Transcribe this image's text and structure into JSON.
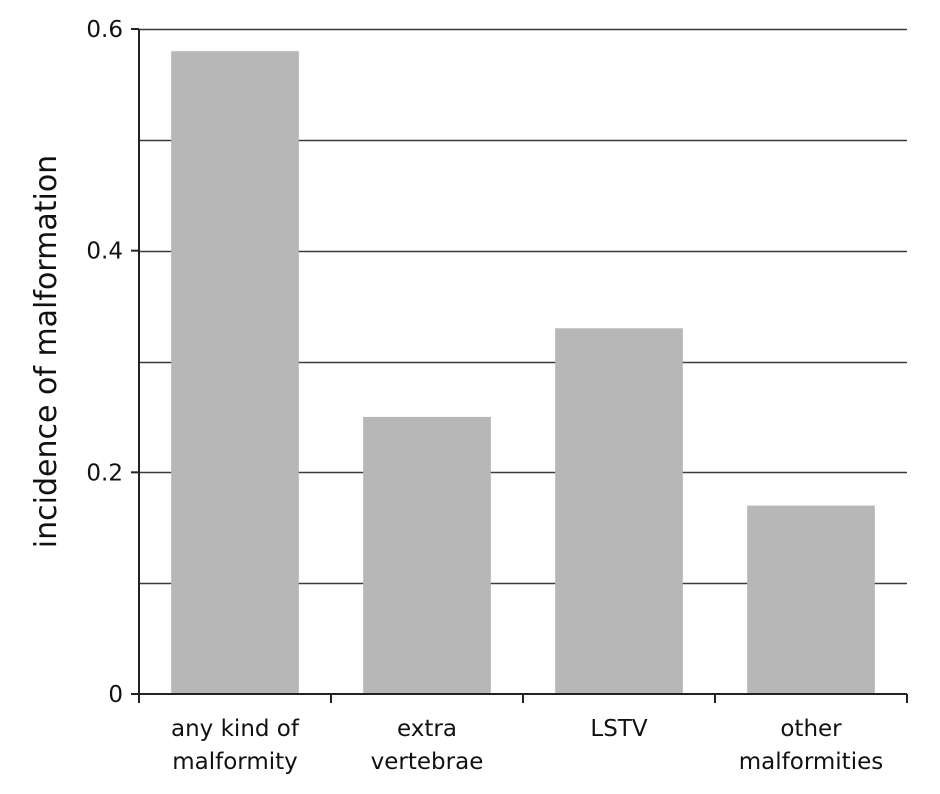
{
  "chart_data": {
    "type": "bar",
    "title": "",
    "xlabel": "",
    "ylabel": "incidence of malformation",
    "categories": [
      [
        "any kind of",
        "malformity"
      ],
      [
        "extra",
        "vertebrae"
      ],
      [
        "LSTV"
      ],
      [
        "other",
        "malformities"
      ]
    ],
    "values": [
      0.58,
      0.25,
      0.33,
      0.17
    ],
    "ylim": [
      0,
      0.6
    ],
    "yticks": [
      0,
      0.2,
      0.4,
      0.6
    ],
    "ytick_labels": [
      "0",
      "0.2",
      "0.4",
      "0.6"
    ],
    "gridlines": [
      0.1,
      0.2,
      0.3,
      0.4,
      0.5,
      0.6
    ],
    "grid": true,
    "legend": "none",
    "bar_color": "#b7b7b7",
    "axis_color": "#222222",
    "grid_color": "#3a3a3a"
  }
}
